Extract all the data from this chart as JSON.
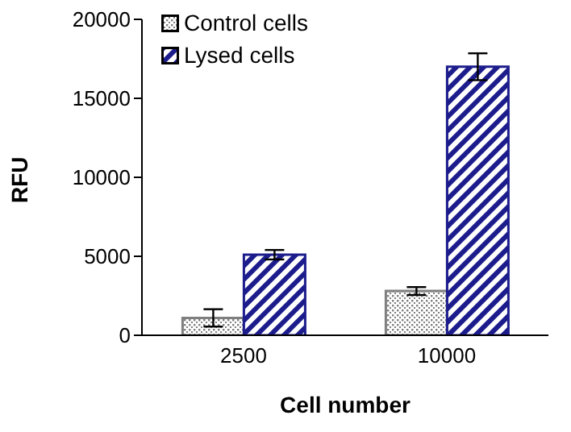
{
  "chart_data": {
    "type": "bar",
    "xlabel": "Cell number",
    "ylabel": "RFU",
    "categories": [
      "2500",
      "10000"
    ],
    "series": [
      {
        "name": "Control cells",
        "color": "#7f7f7f",
        "values": [
          1100,
          2800
        ],
        "errors": [
          550,
          250
        ]
      },
      {
        "name": "Lysed cells",
        "color": "#1c1c8c",
        "values": [
          5100,
          17000
        ],
        "errors": [
          300,
          850
        ]
      }
    ],
    "ylim": [
      0,
      20000
    ],
    "yticks": [
      0,
      5000,
      10000,
      15000,
      20000
    ],
    "grid": false,
    "legend": "top left"
  }
}
